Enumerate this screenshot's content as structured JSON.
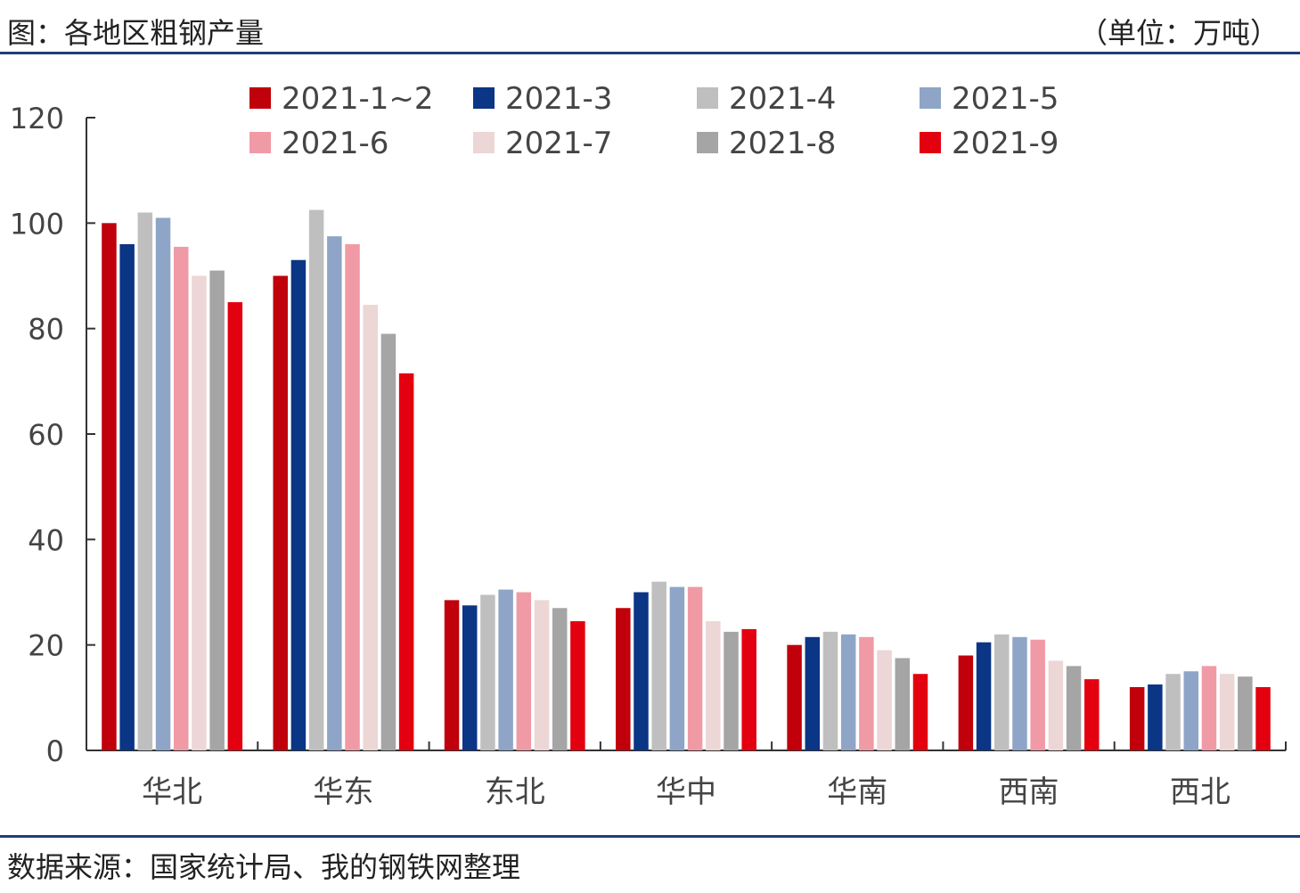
{
  "header": {
    "title": "图：各地区粗钢产量",
    "unit": "（单位：万吨）"
  },
  "footer": {
    "source": "数据来源：国家统计局、我的钢铁网整理"
  },
  "chart_data": {
    "type": "bar",
    "title": "",
    "xlabel": "",
    "ylabel": "",
    "ylim": [
      0,
      120
    ],
    "yticks": [
      0,
      20,
      40,
      60,
      80,
      100,
      120
    ],
    "grid": false,
    "legend_position": "top",
    "categories": [
      "华北",
      "华东",
      "东北",
      "华中",
      "华南",
      "西南",
      "西北"
    ],
    "series": [
      {
        "name": "2021-1~2",
        "color": "#c0000b",
        "values": [
          100,
          90,
          28.5,
          27,
          20,
          18,
          12
        ]
      },
      {
        "name": "2021-3",
        "color": "#0b3585",
        "values": [
          96,
          93,
          27.5,
          30,
          21.5,
          20.5,
          12.5
        ]
      },
      {
        "name": "2021-4",
        "color": "#bfbfbf",
        "values": [
          102,
          102.5,
          29.5,
          32,
          22.5,
          22,
          14.5
        ]
      },
      {
        "name": "2021-5",
        "color": "#8fa5c7",
        "values": [
          101,
          97.5,
          30.5,
          31,
          22,
          21.5,
          15
        ]
      },
      {
        "name": "2021-6",
        "color": "#f09aa6",
        "values": [
          95.5,
          96,
          30,
          31,
          21.5,
          21,
          16
        ]
      },
      {
        "name": "2021-7",
        "color": "#ecd6d6",
        "values": [
          90,
          84.5,
          28.5,
          24.5,
          19,
          17,
          14.5
        ]
      },
      {
        "name": "2021-8",
        "color": "#a5a5a5",
        "values": [
          91,
          79,
          27,
          22.5,
          17.5,
          16,
          14
        ]
      },
      {
        "name": "2021-9",
        "color": "#e3000f",
        "values": [
          85,
          71.5,
          24.5,
          23,
          14.5,
          13.5,
          12
        ]
      }
    ]
  }
}
